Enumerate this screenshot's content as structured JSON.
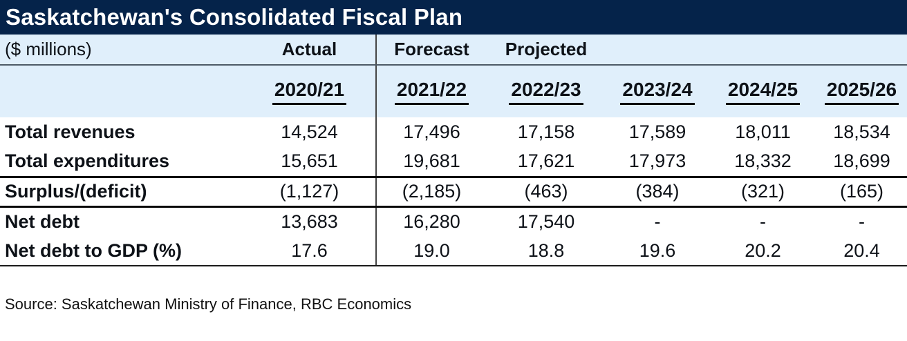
{
  "title": "Saskatchewan's Consolidated Fiscal Plan",
  "source_note": "Source: Saskatchewan Ministry of Finance, RBC Economics",
  "colors": {
    "title_bg": "#05234a",
    "title_text": "#ffffff",
    "band_bg": "#e0effb",
    "rule_line": "#0a0a0a",
    "divider_line": "#454545"
  },
  "chart_data": {
    "type": "table",
    "title": "Saskatchewan's Consolidated Fiscal Plan",
    "unit_label": "($ millions)",
    "column_groups": [
      {
        "label": "Actual",
        "years": [
          "2020/21"
        ]
      },
      {
        "label": "Forecast",
        "years": [
          "2021/22"
        ]
      },
      {
        "label": "Projected",
        "years": [
          "2022/23",
          "2023/24",
          "2024/25",
          "2025/26"
        ]
      }
    ],
    "years": [
      "2020/21",
      "2021/22",
      "2022/23",
      "2023/24",
      "2024/25",
      "2025/26"
    ],
    "rows": [
      {
        "label": "Total revenues",
        "values": [
          "14,524",
          "17,496",
          "17,158",
          "17,589",
          "18,011",
          "18,534"
        ]
      },
      {
        "label": "Total expenditures",
        "values": [
          "15,651",
          "19,681",
          "17,621",
          "17,973",
          "18,332",
          "18,699"
        ]
      },
      {
        "label": "Surplus/(deficit)",
        "values": [
          "(1,127)",
          "(2,185)",
          "(463)",
          "(384)",
          "(321)",
          "(165)"
        ]
      },
      {
        "label": "Net debt",
        "values": [
          "13,683",
          "16,280",
          "17,540",
          "-",
          "-",
          "-"
        ]
      },
      {
        "label": "Net debt to GDP (%)",
        "values": [
          "17.6",
          "19.0",
          "18.8",
          "19.6",
          "20.2",
          "20.4"
        ]
      }
    ]
  }
}
